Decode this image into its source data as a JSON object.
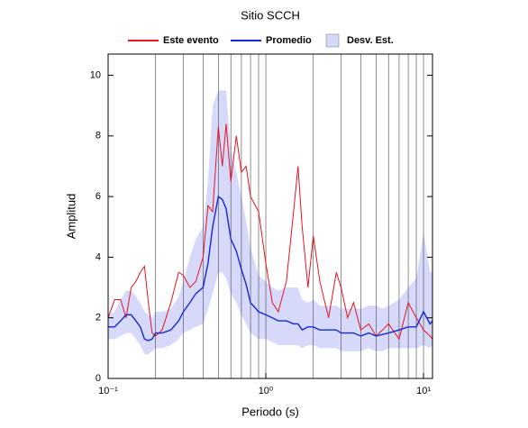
{
  "chart_data": {
    "type": "line",
    "title": "Sitio SCCH",
    "xlabel": "Periodo (s)",
    "ylabel": "Amplitud",
    "log_x": true,
    "x": [
      0.1,
      0.11,
      0.12,
      0.13,
      0.14,
      0.15,
      0.16,
      0.17,
      0.18,
      0.19,
      0.2,
      0.22,
      0.25,
      0.28,
      0.3,
      0.33,
      0.36,
      0.4,
      0.43,
      0.46,
      0.5,
      0.53,
      0.56,
      0.6,
      0.65,
      0.7,
      0.75,
      0.8,
      0.9,
      1,
      1.1,
      1.2,
      1.35,
      1.5,
      1.6,
      1.7,
      1.85,
      2,
      2.2,
      2.5,
      2.8,
      3,
      3.3,
      3.6,
      4,
      4.5,
      5,
      5.5,
      6,
      7,
      8,
      9,
      10,
      11,
      11.4
    ],
    "series": [
      {
        "name": "Este evento",
        "color": "#e8141e",
        "values": [
          2.0,
          2.6,
          2.6,
          2.0,
          3.0,
          3.2,
          3.5,
          3.7,
          2.5,
          1.5,
          1.4,
          1.6,
          2.5,
          3.5,
          3.4,
          3.0,
          3.2,
          4.0,
          5.7,
          5.5,
          8.3,
          7.0,
          8.4,
          6.5,
          8.0,
          6.8,
          7.0,
          6.0,
          5.5,
          3.8,
          2.5,
          2.2,
          3.2,
          5.5,
          7.0,
          5.0,
          3.0,
          4.7,
          3.2,
          2.0,
          3.5,
          3.0,
          2.0,
          2.5,
          1.6,
          1.8,
          1.4,
          1.6,
          1.8,
          1.3,
          2.5,
          2.0,
          1.6,
          1.4,
          1.3
        ]
      },
      {
        "name": "Promedio",
        "color": "#1428d2",
        "values": [
          1.7,
          1.7,
          1.9,
          2.1,
          2.1,
          1.9,
          1.7,
          1.3,
          1.25,
          1.3,
          1.5,
          1.5,
          1.6,
          1.9,
          2.2,
          2.5,
          2.8,
          3.0,
          3.8,
          5.0,
          6.0,
          5.9,
          5.6,
          4.6,
          4.2,
          3.6,
          3.1,
          2.5,
          2.2,
          2.1,
          2.0,
          1.9,
          1.9,
          1.8,
          1.8,
          1.6,
          1.7,
          1.7,
          1.6,
          1.6,
          1.6,
          1.5,
          1.5,
          1.5,
          1.4,
          1.5,
          1.4,
          1.45,
          1.5,
          1.6,
          1.7,
          1.7,
          2.2,
          1.8,
          1.9
        ]
      },
      {
        "name": "Desv. Est.",
        "color": "#d7d9fa",
        "upper": [
          2.1,
          2.2,
          2.6,
          2.9,
          2.9,
          2.7,
          2.5,
          2.2,
          2.1,
          2.0,
          2.2,
          2.2,
          2.3,
          2.7,
          3.2,
          4.0,
          4.6,
          5.0,
          6.5,
          9.0,
          9.5,
          9.5,
          9.5,
          7.5,
          6.8,
          6.0,
          5.2,
          4.3,
          3.4,
          3.2,
          3.0,
          2.9,
          3.0,
          3.0,
          3.0,
          2.6,
          2.5,
          2.6,
          2.4,
          2.4,
          2.4,
          2.3,
          2.3,
          2.3,
          2.3,
          2.4,
          2.4,
          2.3,
          2.4,
          2.6,
          3.0,
          3.3,
          4.8,
          3.5,
          3.5
        ],
        "lower": [
          1.3,
          1.3,
          1.4,
          1.5,
          1.5,
          1.3,
          1.1,
          0.8,
          0.8,
          0.9,
          1.0,
          1.0,
          1.1,
          1.3,
          1.5,
          1.6,
          1.7,
          1.8,
          2.3,
          2.8,
          3.5,
          3.5,
          3.3,
          2.8,
          2.5,
          2.1,
          1.8,
          1.5,
          1.3,
          1.3,
          1.2,
          1.1,
          1.1,
          1.1,
          1.1,
          1.0,
          1.1,
          1.1,
          1.0,
          1.0,
          1.0,
          0.9,
          0.9,
          0.9,
          0.9,
          1.0,
          0.9,
          0.9,
          1.0,
          1.0,
          1.0,
          1.0,
          1.1,
          1.0,
          1.1
        ]
      }
    ],
    "xlim": [
      0.1,
      11.4
    ],
    "ylim": [
      0,
      10.7
    ],
    "xticks": [
      {
        "value": 0.1,
        "label": "10⁻¹"
      },
      {
        "value": 1,
        "label": "10⁰"
      },
      {
        "value": 10,
        "label": "10¹"
      }
    ],
    "xgrid": [
      0.2,
      0.3,
      0.4,
      0.5,
      0.6,
      0.7,
      0.8,
      0.9,
      1,
      2,
      3,
      4,
      5,
      6,
      7,
      8,
      9,
      10
    ],
    "yticks": [
      0,
      2,
      4,
      6,
      8,
      10
    ]
  }
}
